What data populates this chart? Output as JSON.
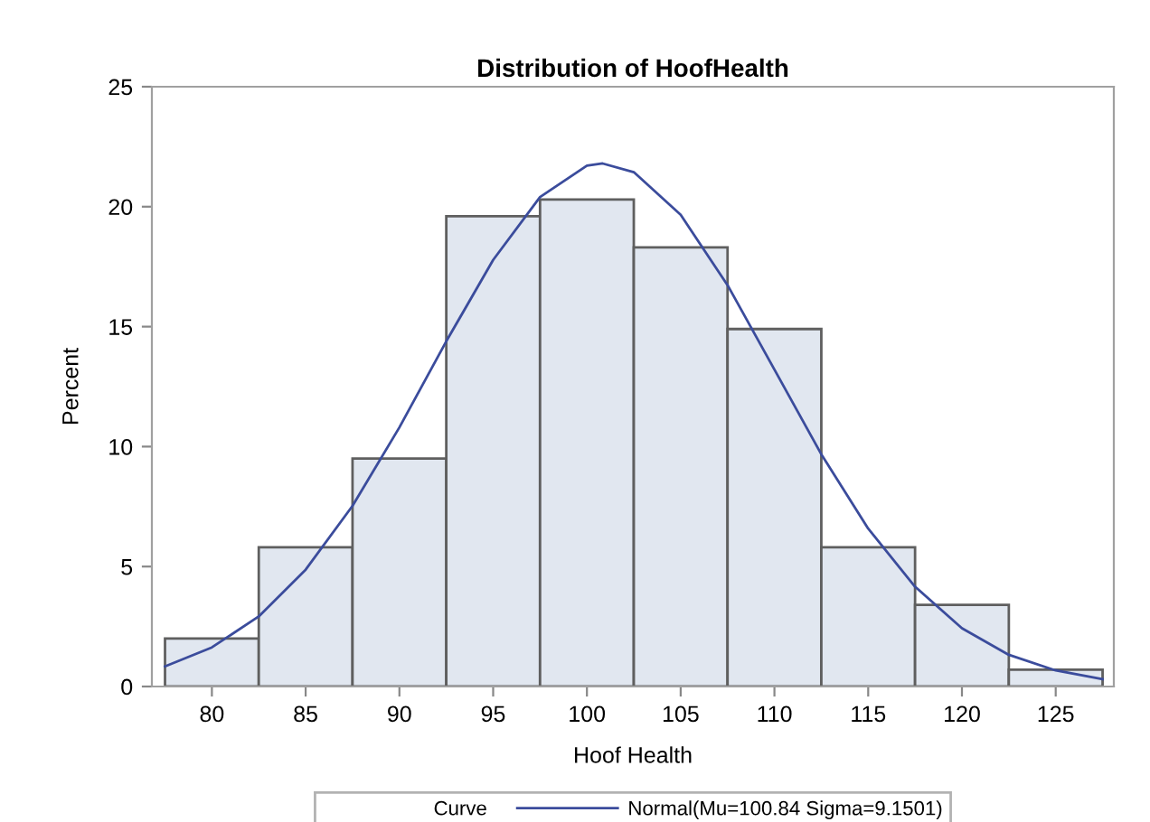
{
  "chart_data": {
    "type": "histogram",
    "title": "Distribution of HoofHealth",
    "xlabel": "Hoof Health",
    "ylabel": "Percent",
    "bins": [
      77.5,
      82.5,
      87.5,
      92.5,
      97.5,
      102.5,
      107.5,
      112.5,
      117.5,
      122.5,
      127.5
    ],
    "values": [
      2.0,
      5.8,
      9.5,
      19.6,
      20.3,
      18.3,
      14.9,
      5.8,
      3.4,
      0.7
    ],
    "color": "#e1e7f0",
    "series": [
      {
        "type": "line",
        "name": "Normal(Mu=100.84 Sigma=9.1501)",
        "color": "#3b4c9c",
        "x": [
          77.5,
          80,
          82.5,
          85,
          87.5,
          90,
          92.5,
          95,
          97.5,
          100,
          100.84,
          102.5,
          105,
          107.5,
          110,
          112.5,
          115,
          117.5,
          120,
          122.5,
          125,
          127.5
        ],
        "values": [
          0.84,
          1.63,
          2.92,
          4.87,
          7.53,
          10.8,
          14.39,
          17.78,
          20.4,
          21.71,
          21.8,
          21.44,
          19.66,
          16.73,
          13.21,
          9.68,
          6.58,
          4.16,
          2.43,
          1.32,
          0.67,
          0.31
        ]
      }
    ],
    "legend_title": "Curve",
    "legend": "bottom",
    "xlim": [
      76.8,
      128.1
    ],
    "xticks": [
      80,
      85,
      90,
      95,
      100,
      105,
      110,
      115,
      120,
      125
    ],
    "ylim": [
      0,
      25
    ],
    "yticks": [
      0,
      5,
      10,
      15,
      20,
      25
    ],
    "grid": false
  }
}
